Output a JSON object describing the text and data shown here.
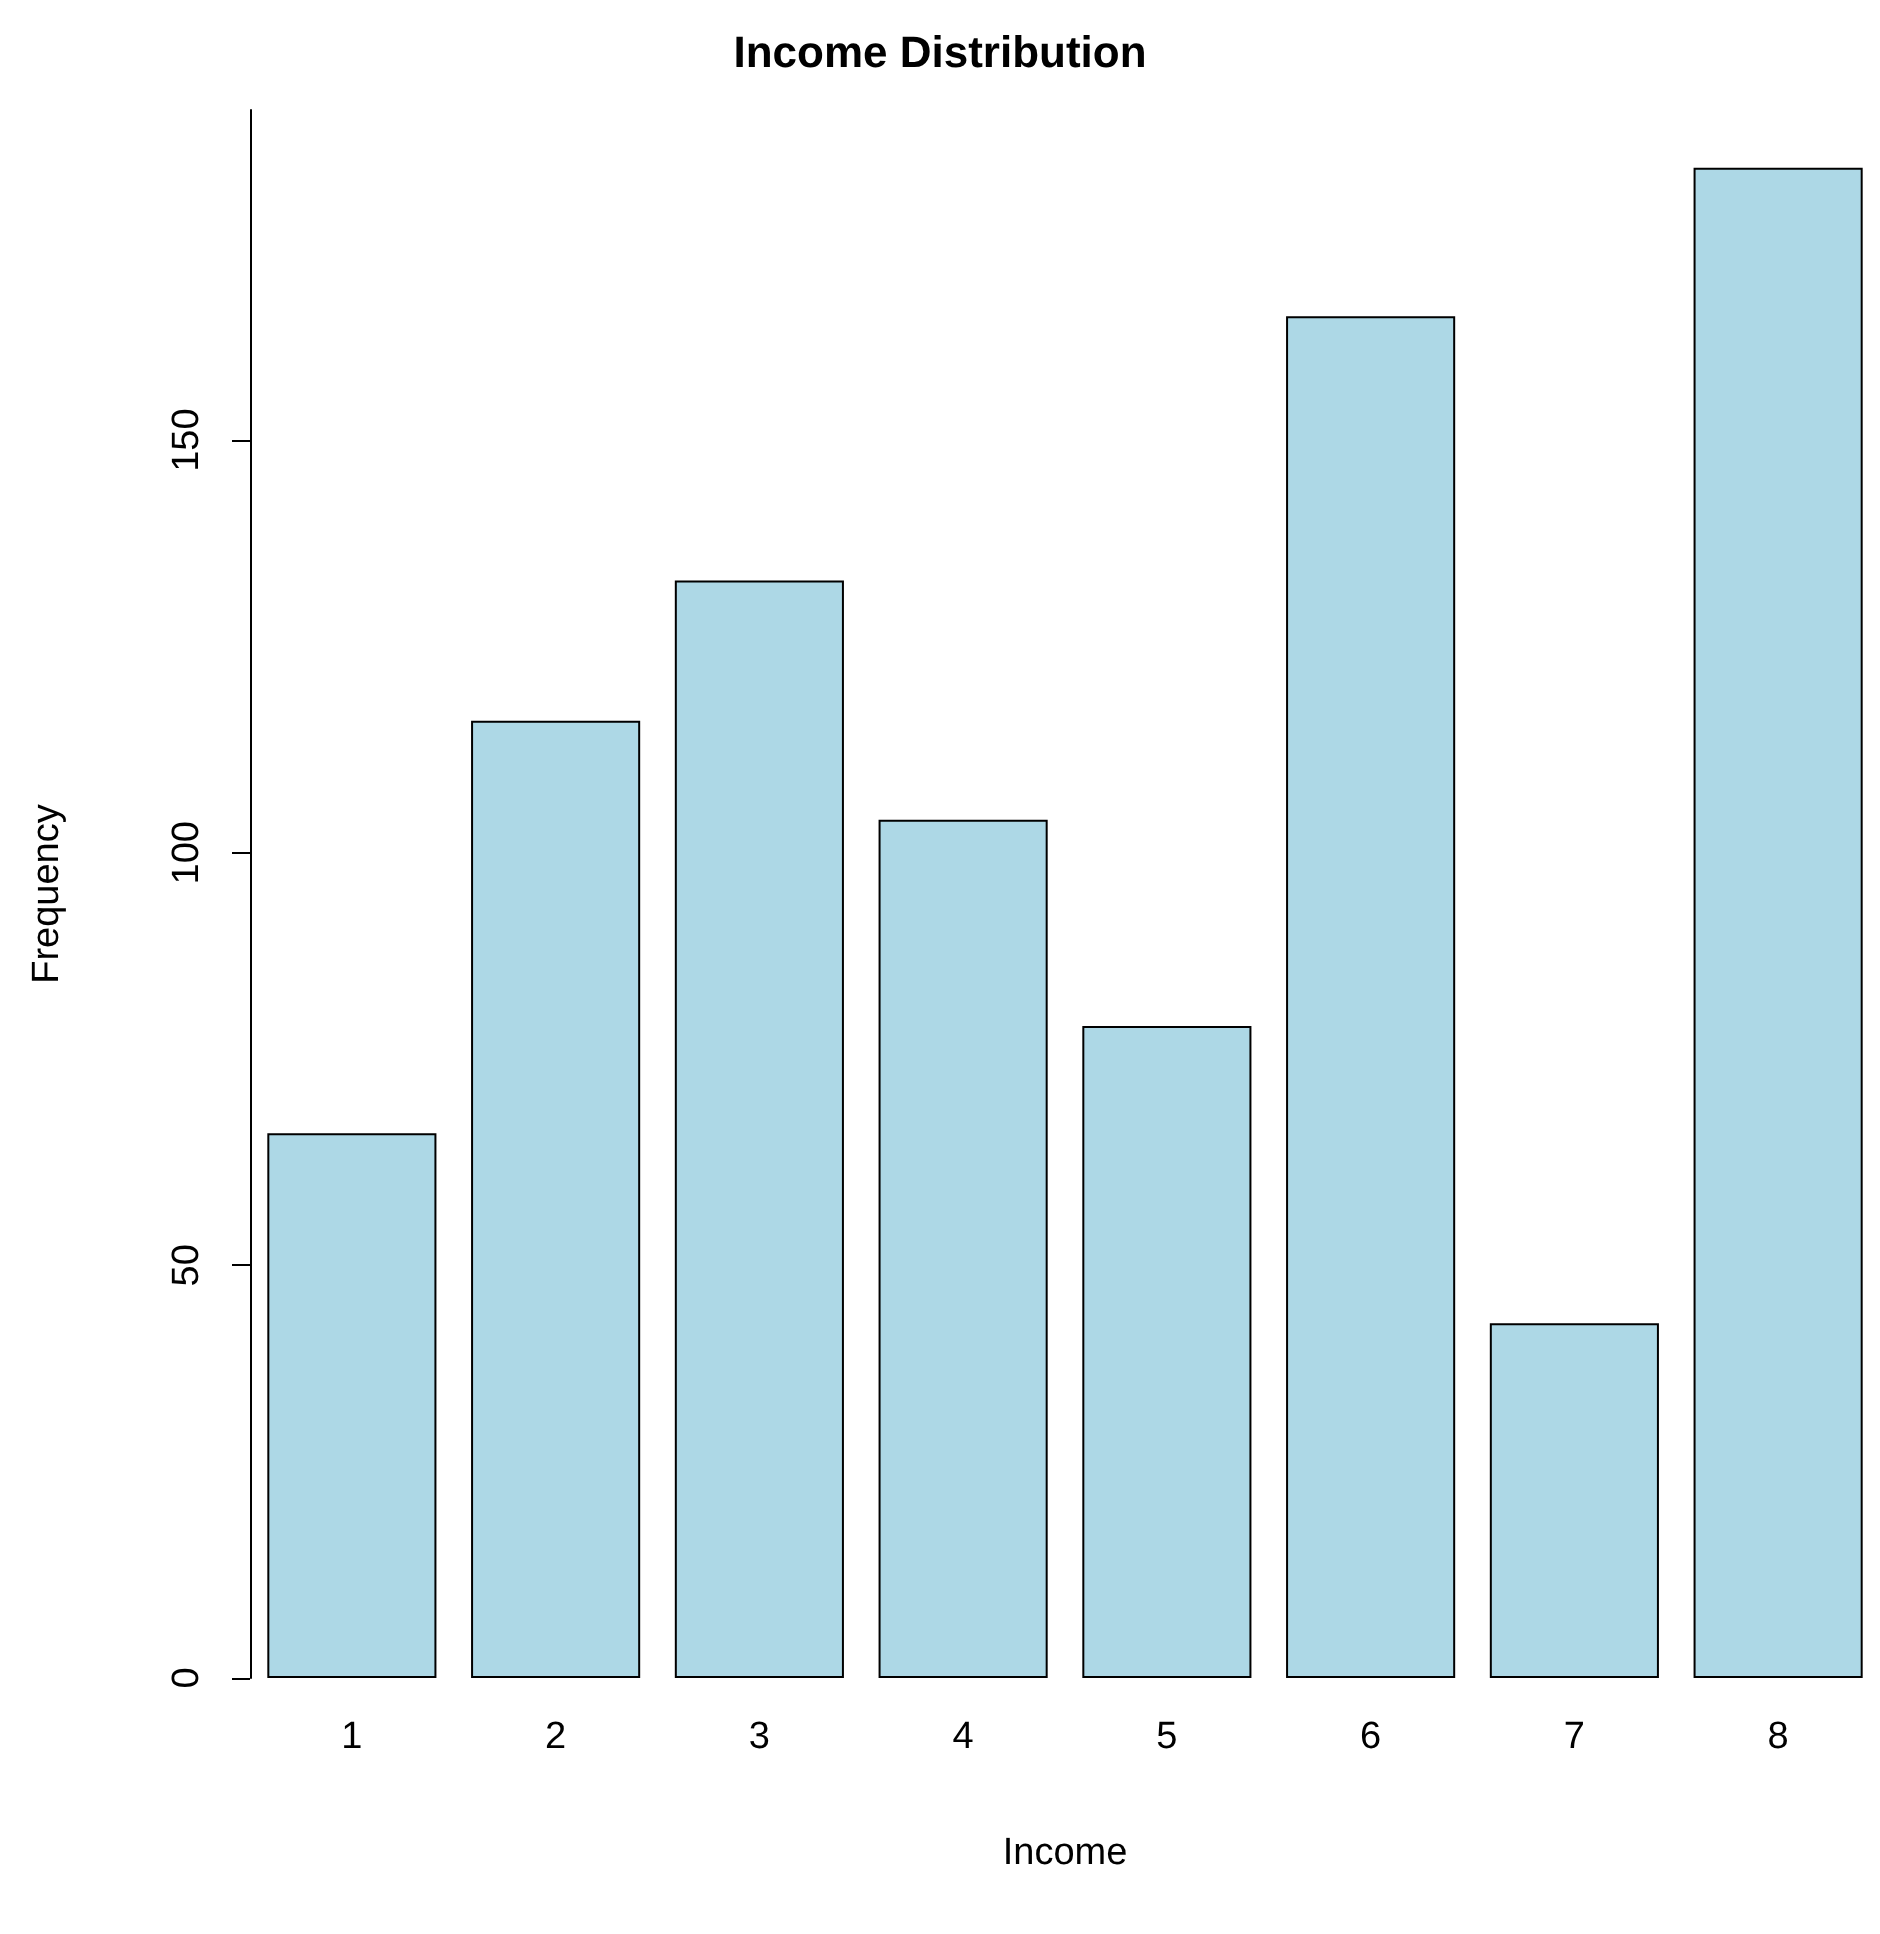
{
  "chart_data": {
    "type": "bar",
    "title": "Income Distribution",
    "xlabel": "Income",
    "ylabel": "Frequency",
    "categories": [
      "1",
      "2",
      "3",
      "4",
      "5",
      "6",
      "7",
      "8"
    ],
    "values": [
      66,
      116,
      133,
      104,
      79,
      165,
      43,
      183
    ],
    "color": "#add8e6",
    "ylim": [
      0,
      190
    ],
    "yticks": [
      0,
      50,
      100,
      150
    ]
  }
}
